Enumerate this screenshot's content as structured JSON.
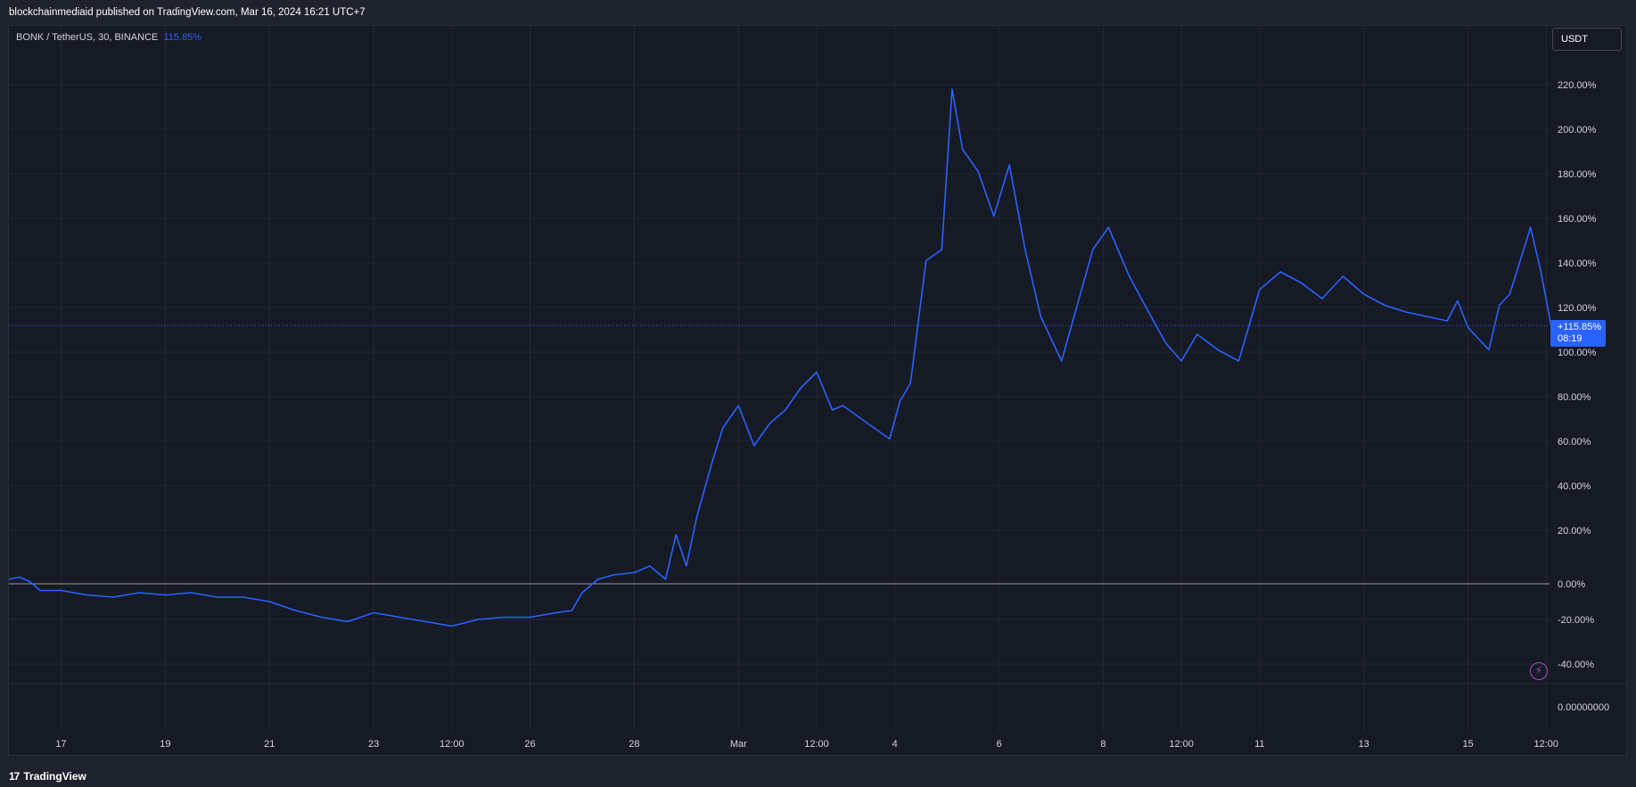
{
  "header": {
    "published_text": "blockchainmediaid published on TradingView.com, Mar 16, 2024 16:21 UTC+7"
  },
  "legend": {
    "symbol": "BONK / TetherUS, 30, BINANCE",
    "change": "115.85%"
  },
  "currency_button": {
    "label": "USDT"
  },
  "price_tag": {
    "value": "+115.85%",
    "countdown": "08:19"
  },
  "footer": {
    "logo_mark": "17",
    "brand": "TradingView"
  },
  "colors": {
    "line": "#2962ff",
    "background": "#161a25",
    "grid": "#232733",
    "zero_line": "#9598a1",
    "accent_bolt": "#ab47bc"
  },
  "icons": {
    "alert": "lightning-bolt-icon"
  },
  "chart_data": {
    "type": "line",
    "title": "BONK / TetherUS, 30, BINANCE",
    "xlabel": "",
    "ylabel": "",
    "ylim": [
      -40,
      225
    ],
    "grid": true,
    "y_ticks": [
      "220.00%",
      "200.00%",
      "180.00%",
      "160.00%",
      "140.00%",
      "120.00%",
      "100.00%",
      "80.00%",
      "60.00%",
      "40.00%",
      "20.00%",
      "0.00%",
      "-20.00%",
      "-40.00%"
    ],
    "y_tick_values": [
      220,
      200,
      180,
      160,
      140,
      120,
      100,
      80,
      60,
      40,
      20,
      0,
      -20,
      -40
    ],
    "secondary_axis_label": "0.00000000",
    "x_ticks": [
      "17",
      "19",
      "21",
      "23",
      "12:00",
      "26",
      "28",
      "Mar",
      "12:00",
      "4",
      "6",
      "8",
      "12:00",
      "11",
      "13",
      "15",
      "12:00"
    ],
    "x_tick_days": [
      1,
      3,
      5,
      7,
      8.5,
      10,
      12,
      14,
      15.5,
      17,
      19,
      21,
      22.5,
      24,
      26,
      28,
      29.5
    ],
    "last_value": 115.85,
    "series": [
      {
        "x": [
          0,
          0.2,
          0.4,
          0.6,
          1,
          1.5,
          2,
          2.5,
          3,
          3.5,
          4,
          4.5,
          5,
          5.5,
          6,
          6.5,
          7,
          7.5,
          8,
          8.5,
          9,
          9.5,
          10,
          10.5,
          10.8,
          11,
          11.3,
          11.6,
          12,
          12.3,
          12.6,
          12.8,
          13,
          13.2,
          13.5,
          13.7,
          14,
          14.3,
          14.6,
          14.9,
          15.2,
          15.5,
          15.8,
          16,
          16.3,
          16.6,
          16.9,
          17.1,
          17.3,
          17.6,
          17.9,
          18.1,
          18.3,
          18.6,
          18.9,
          19.2,
          19.5,
          19.8,
          20.2,
          20.5,
          20.8,
          21.1,
          21.5,
          21.8,
          22.2,
          22.5,
          22.8,
          23.2,
          23.6,
          24,
          24.4,
          24.8,
          25.2,
          25.6,
          26,
          26.4,
          26.8,
          27.2,
          27.6,
          27.8,
          28,
          28.2,
          28.4,
          28.6,
          28.8,
          29,
          29.2,
          29.4,
          29.6,
          29.75
        ],
        "y": [
          2,
          3,
          1,
          -3,
          -3,
          -5,
          -6,
          -4,
          -5,
          -4,
          -6,
          -6,
          -8,
          -12,
          -15,
          -17,
          -13,
          -15,
          -17,
          -19,
          -16,
          -15,
          -15,
          -13,
          -12,
          -4,
          2,
          4,
          5,
          8,
          2,
          22,
          8,
          30,
          55,
          70,
          80,
          62,
          72,
          78,
          88,
          95,
          78,
          80,
          75,
          70,
          65,
          82,
          90,
          145,
          150,
          222,
          195,
          185,
          165,
          188,
          150,
          120,
          100,
          125,
          150,
          160,
          138,
          125,
          108,
          100,
          112,
          105,
          100,
          132,
          140,
          135,
          128,
          138,
          130,
          125,
          122,
          120,
          118,
          127,
          115,
          110,
          105,
          125,
          130,
          145,
          160,
          140,
          115,
          115.85
        ]
      }
    ]
  }
}
